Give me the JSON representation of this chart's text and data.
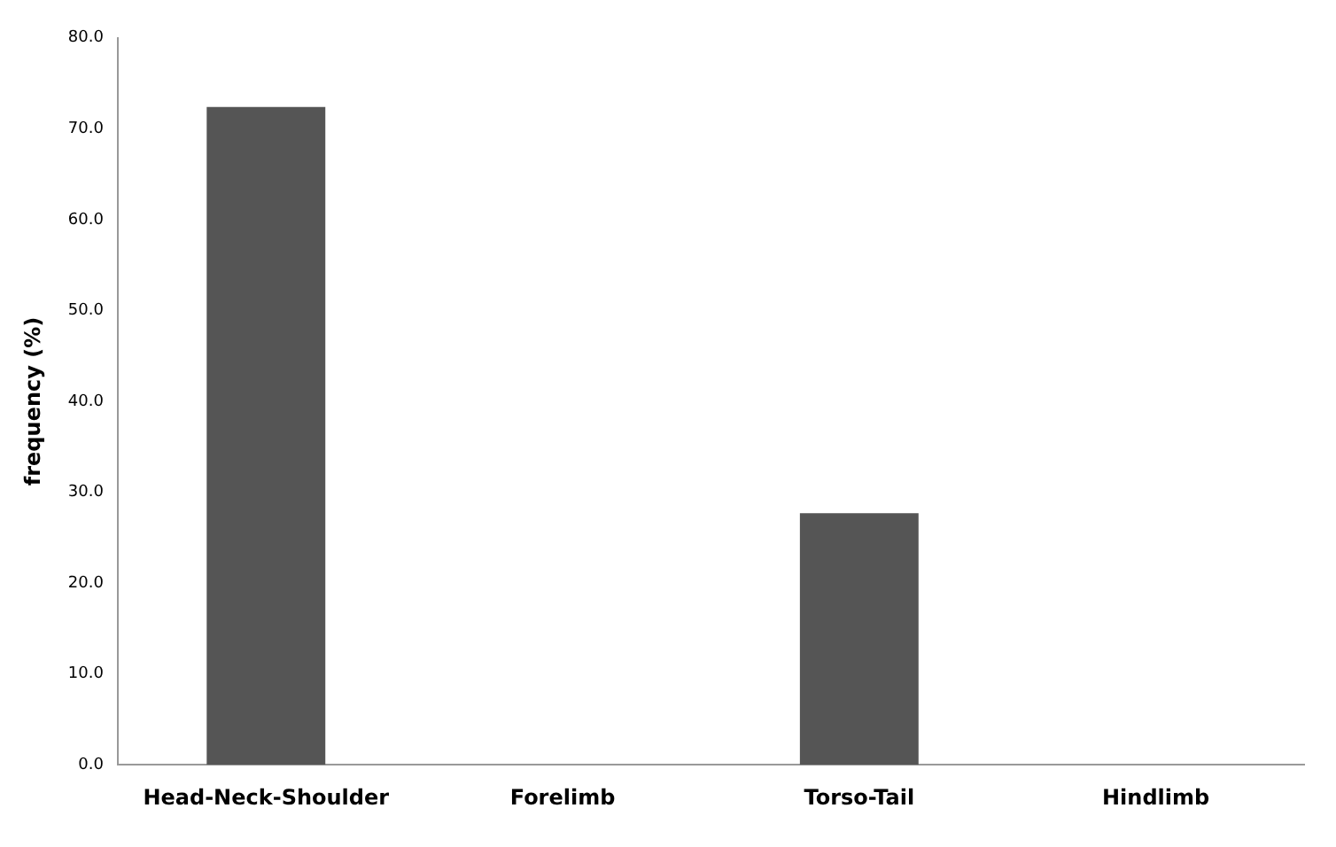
{
  "chart_data": {
    "type": "bar",
    "ylabel": "frequency (%)",
    "categories": [
      "Head-Neck-Shoulder",
      "Forelimb",
      "Torso-Tail",
      "Hindlimb"
    ],
    "values": [
      72.4,
      0,
      27.7,
      0
    ],
    "color": "#555555",
    "ylim": [
      0,
      80
    ],
    "yticks": [
      {
        "value": 0,
        "label": "0.0"
      },
      {
        "value": 10,
        "label": "10.0"
      },
      {
        "value": 20,
        "label": "20.0"
      },
      {
        "value": 30,
        "label": "30.0"
      },
      {
        "value": 40,
        "label": "40.0"
      },
      {
        "value": 50,
        "label": "50.0"
      },
      {
        "value": 60,
        "label": "60.0"
      },
      {
        "value": 70,
        "label": "70.0"
      },
      {
        "value": 80,
        "label": "80.0"
      }
    ],
    "grid": false,
    "legend": false
  }
}
